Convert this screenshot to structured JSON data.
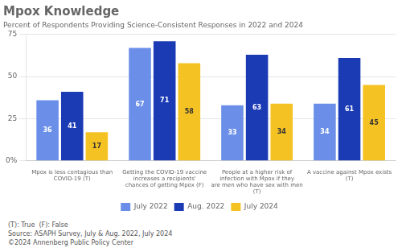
{
  "chart_data": {
    "type": "bar",
    "title": "Mpox Knowledge",
    "subtitle": "Percent of Respondents Providing Science-Consistent Responses in 2022 and 2024",
    "categories": [
      "Mpox is less contagious than\nCOVID-19 (T)",
      "Getting the COVID-19 vaccine\nincreases a recipients'\nchances of getting Mpox (F)",
      "People at a higher risk of\ninfection with Mpox if they\nare men who have sex with men\n(T)",
      "A vaccine against Mpox exists\n(T)"
    ],
    "series": [
      {
        "name": "July 2022",
        "color": "#6B8FE8",
        "values": [
          36,
          67,
          33,
          34
        ]
      },
      {
        "name": "Aug. 2022",
        "color": "#1B3BB5",
        "values": [
          41,
          71,
          63,
          61
        ]
      },
      {
        "name": "July 2024",
        "color": "#F5C224",
        "values": [
          17,
          58,
          34,
          45
        ]
      }
    ],
    "ylim": [
      0,
      75
    ],
    "yticks": [
      {
        "value": 0,
        "label": "0%"
      },
      25,
      50,
      75
    ],
    "grid": true,
    "legend": "bottom",
    "data_labels": true,
    "footnote": "(T): True  (F): False\nSource: ASAPH Survey, July & Aug. 2022, July 2024\n©2024 Annenberg Public Policy Center"
  }
}
